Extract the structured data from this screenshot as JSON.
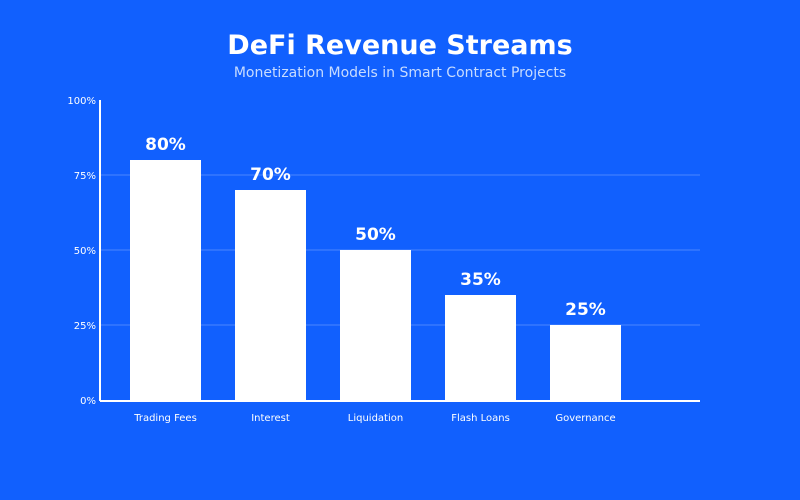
{
  "chart_data": {
    "type": "bar",
    "title": "DeFi Revenue Streams",
    "subtitle": "Monetization Models in Smart Contract Projects",
    "categories": [
      "Trading Fees",
      "Interest",
      "Liquidation",
      "Flash Loans",
      "Governance"
    ],
    "values": [
      80,
      70,
      50,
      35,
      25
    ],
    "data_labels": [
      "80%",
      "70%",
      "50%",
      "35%",
      "25%"
    ],
    "ylim": [
      0,
      100
    ],
    "yticks": [
      0,
      25,
      50,
      75,
      100
    ],
    "ytick_labels": [
      "0%",
      "25%",
      "50%",
      "75%",
      "100%"
    ],
    "xlabel": "",
    "ylabel": "",
    "grid": true,
    "colors": {
      "background": "#1160fe",
      "bar": "#ffffff",
      "grid": "#4a86ff",
      "text": "#ffffff"
    }
  }
}
